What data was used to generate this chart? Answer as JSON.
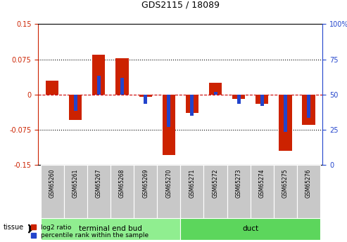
{
  "title": "GDS2115 / 18089",
  "samples": [
    "GSM65260",
    "GSM65261",
    "GSM65267",
    "GSM65268",
    "GSM65269",
    "GSM65270",
    "GSM65271",
    "GSM65272",
    "GSM65273",
    "GSM65274",
    "GSM65275",
    "GSM65276"
  ],
  "log2_ratio": [
    0.03,
    -0.055,
    0.085,
    0.078,
    -0.005,
    -0.13,
    -0.04,
    0.025,
    -0.01,
    -0.02,
    -0.12,
    -0.065
  ],
  "pct_rank": [
    0.0,
    -0.035,
    0.04,
    0.035,
    -0.02,
    -0.07,
    -0.045,
    0.005,
    -0.02,
    -0.025,
    -0.08,
    -0.05
  ],
  "ylim": [
    -0.15,
    0.15
  ],
  "yticks_left": [
    -0.15,
    -0.075,
    0,
    0.075,
    0.15
  ],
  "yticks_right": [
    0,
    25,
    50,
    75,
    100
  ],
  "groups": [
    {
      "label": "terminal end bud",
      "start": 0,
      "end": 6,
      "color": "#90EE90"
    },
    {
      "label": "duct",
      "start": 6,
      "end": 12,
      "color": "#5CD65C"
    }
  ],
  "tissue_label": "tissue",
  "bar_color_red": "#CC2200",
  "bar_color_blue": "#2244CC",
  "grid_color": "#000000",
  "dashed_zero_color": "#CC0000",
  "left_axis_color": "#CC2200",
  "right_axis_color": "#2244CC",
  "legend_red_label": "log2 ratio",
  "legend_blue_label": "percentile rank within the sample",
  "red_bar_width": 0.55,
  "blue_bar_width": 0.15
}
